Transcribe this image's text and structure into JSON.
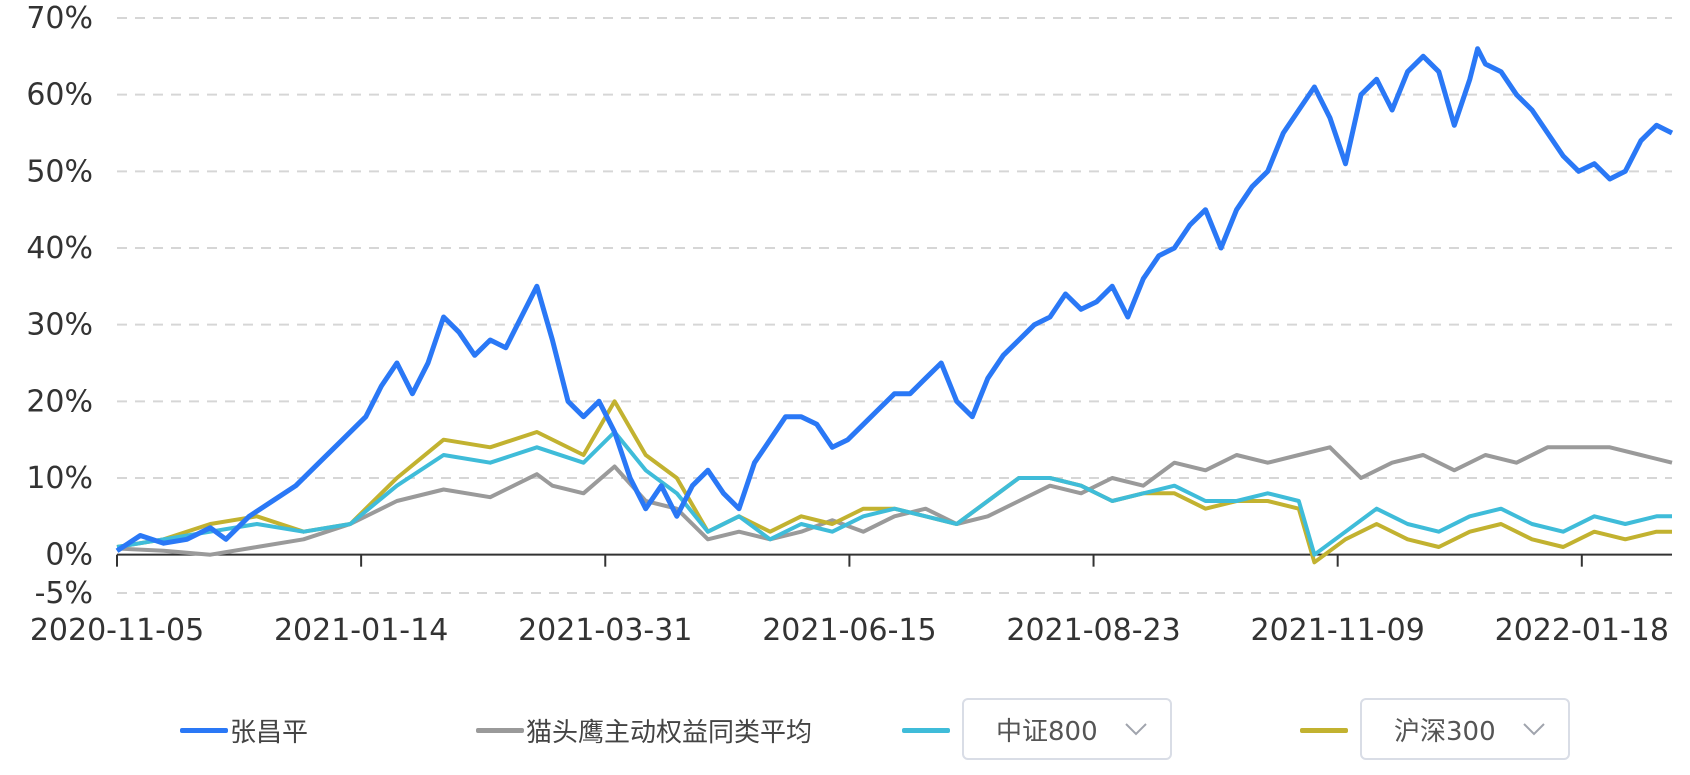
{
  "chart_data": {
    "type": "line",
    "y_ticks": [
      "70%",
      "60%",
      "50%",
      "40%",
      "30%",
      "20%",
      "10%",
      "0%",
      "-5%"
    ],
    "y_tick_values": [
      70,
      60,
      50,
      40,
      30,
      20,
      10,
      0,
      -5
    ],
    "ylim": [
      -5,
      70
    ],
    "x_ticks": [
      "2020-11-05",
      "2021-01-14",
      "2021-03-31",
      "2021-06-15",
      "2021-08-23",
      "2021-11-09",
      "2022-01-18"
    ],
    "x_tick_positions": [
      0,
      0.157,
      0.314,
      0.471,
      0.628,
      0.785,
      0.942
    ],
    "grid": true,
    "legend_placement": "bottom",
    "series": [
      {
        "name": "张昌平",
        "color": "#2a78f6",
        "points": [
          [
            0,
            0.5
          ],
          [
            0.015,
            2.5
          ],
          [
            0.03,
            1.5
          ],
          [
            0.045,
            2
          ],
          [
            0.06,
            3.5
          ],
          [
            0.07,
            2
          ],
          [
            0.085,
            5
          ],
          [
            0.1,
            7
          ],
          [
            0.115,
            9
          ],
          [
            0.13,
            12
          ],
          [
            0.145,
            15
          ],
          [
            0.16,
            18
          ],
          [
            0.17,
            22
          ],
          [
            0.18,
            25
          ],
          [
            0.19,
            21
          ],
          [
            0.2,
            25
          ],
          [
            0.21,
            31
          ],
          [
            0.22,
            29
          ],
          [
            0.23,
            26
          ],
          [
            0.24,
            28
          ],
          [
            0.25,
            27
          ],
          [
            0.26,
            31
          ],
          [
            0.27,
            35
          ],
          [
            0.28,
            28
          ],
          [
            0.29,
            20
          ],
          [
            0.3,
            18
          ],
          [
            0.31,
            20
          ],
          [
            0.32,
            16
          ],
          [
            0.33,
            10
          ],
          [
            0.34,
            6
          ],
          [
            0.35,
            9
          ],
          [
            0.36,
            5
          ],
          [
            0.37,
            9
          ],
          [
            0.38,
            11
          ],
          [
            0.39,
            8
          ],
          [
            0.4,
            6
          ],
          [
            0.41,
            12
          ],
          [
            0.42,
            15
          ],
          [
            0.43,
            18
          ],
          [
            0.44,
            18
          ],
          [
            0.45,
            17
          ],
          [
            0.46,
            14
          ],
          [
            0.47,
            15
          ],
          [
            0.48,
            17
          ],
          [
            0.49,
            19
          ],
          [
            0.5,
            21
          ],
          [
            0.51,
            21
          ],
          [
            0.52,
            23
          ],
          [
            0.53,
            25
          ],
          [
            0.54,
            20
          ],
          [
            0.55,
            18
          ],
          [
            0.56,
            23
          ],
          [
            0.57,
            26
          ],
          [
            0.58,
            28
          ],
          [
            0.59,
            30
          ],
          [
            0.6,
            31
          ],
          [
            0.61,
            34
          ],
          [
            0.62,
            32
          ],
          [
            0.63,
            33
          ],
          [
            0.64,
            35
          ],
          [
            0.65,
            31
          ],
          [
            0.66,
            36
          ],
          [
            0.67,
            39
          ],
          [
            0.68,
            40
          ],
          [
            0.69,
            43
          ],
          [
            0.7,
            45
          ],
          [
            0.71,
            40
          ],
          [
            0.72,
            45
          ],
          [
            0.73,
            48
          ],
          [
            0.74,
            50
          ],
          [
            0.75,
            55
          ],
          [
            0.76,
            58
          ],
          [
            0.77,
            61
          ],
          [
            0.78,
            57
          ],
          [
            0.79,
            51
          ],
          [
            0.8,
            60
          ],
          [
            0.81,
            62
          ],
          [
            0.82,
            58
          ],
          [
            0.83,
            63
          ],
          [
            0.84,
            65
          ],
          [
            0.85,
            63
          ],
          [
            0.86,
            56
          ],
          [
            0.87,
            62
          ],
          [
            0.875,
            66
          ],
          [
            0.88,
            64
          ],
          [
            0.89,
            63
          ],
          [
            0.9,
            60
          ],
          [
            0.91,
            58
          ],
          [
            0.92,
            55
          ],
          [
            0.93,
            52
          ],
          [
            0.94,
            50
          ],
          [
            0.95,
            51
          ],
          [
            0.96,
            49
          ],
          [
            0.97,
            50
          ],
          [
            0.98,
            54
          ],
          [
            0.99,
            56
          ],
          [
            1.0,
            55
          ]
        ],
        "raw_fraction": true
      },
      {
        "name": "猫头鹰主动权益同类平均",
        "color": "#9a9a9a",
        "raw_fraction": true,
        "points": [
          [
            0,
            0.8
          ],
          [
            0.03,
            0.5
          ],
          [
            0.06,
            0
          ],
          [
            0.09,
            1
          ],
          [
            0.12,
            2
          ],
          [
            0.15,
            4
          ],
          [
            0.18,
            7
          ],
          [
            0.21,
            8.5
          ],
          [
            0.24,
            7.5
          ],
          [
            0.27,
            10.5
          ],
          [
            0.28,
            9
          ],
          [
            0.3,
            8
          ],
          [
            0.32,
            11.5
          ],
          [
            0.34,
            7
          ],
          [
            0.36,
            6
          ],
          [
            0.38,
            2
          ],
          [
            0.4,
            3
          ],
          [
            0.42,
            2
          ],
          [
            0.44,
            3
          ],
          [
            0.46,
            4.5
          ],
          [
            0.48,
            3
          ],
          [
            0.5,
            5
          ],
          [
            0.52,
            6
          ],
          [
            0.54,
            4
          ],
          [
            0.56,
            5
          ],
          [
            0.58,
            7
          ],
          [
            0.6,
            9
          ],
          [
            0.62,
            8
          ],
          [
            0.64,
            10
          ],
          [
            0.66,
            9
          ],
          [
            0.68,
            12
          ],
          [
            0.7,
            11
          ],
          [
            0.72,
            13
          ],
          [
            0.74,
            12
          ],
          [
            0.76,
            13
          ],
          [
            0.78,
            14
          ],
          [
            0.8,
            10
          ],
          [
            0.82,
            12
          ],
          [
            0.84,
            13
          ],
          [
            0.86,
            11
          ],
          [
            0.88,
            13
          ],
          [
            0.9,
            12
          ],
          [
            0.92,
            14
          ],
          [
            0.94,
            14
          ],
          [
            0.96,
            14
          ],
          [
            0.98,
            13
          ],
          [
            1.0,
            12
          ]
        ]
      },
      {
        "name": "中证800",
        "color": "#3fbcd9",
        "raw_fraction": true,
        "points": [
          [
            0,
            1
          ],
          [
            0.03,
            2
          ],
          [
            0.06,
            3
          ],
          [
            0.09,
            4
          ],
          [
            0.12,
            3
          ],
          [
            0.15,
            4
          ],
          [
            0.18,
            9
          ],
          [
            0.21,
            13
          ],
          [
            0.24,
            12
          ],
          [
            0.27,
            14
          ],
          [
            0.3,
            12
          ],
          [
            0.32,
            16
          ],
          [
            0.34,
            11
          ],
          [
            0.36,
            8
          ],
          [
            0.38,
            3
          ],
          [
            0.4,
            5
          ],
          [
            0.42,
            2
          ],
          [
            0.44,
            4
          ],
          [
            0.46,
            3
          ],
          [
            0.48,
            5
          ],
          [
            0.5,
            6
          ],
          [
            0.52,
            5
          ],
          [
            0.54,
            4
          ],
          [
            0.56,
            7
          ],
          [
            0.58,
            10
          ],
          [
            0.6,
            10
          ],
          [
            0.62,
            9
          ],
          [
            0.64,
            7
          ],
          [
            0.66,
            8
          ],
          [
            0.68,
            9
          ],
          [
            0.7,
            7
          ],
          [
            0.72,
            7
          ],
          [
            0.74,
            8
          ],
          [
            0.76,
            7
          ],
          [
            0.77,
            0
          ],
          [
            0.79,
            3
          ],
          [
            0.81,
            6
          ],
          [
            0.83,
            4
          ],
          [
            0.85,
            3
          ],
          [
            0.87,
            5
          ],
          [
            0.89,
            6
          ],
          [
            0.91,
            4
          ],
          [
            0.93,
            3
          ],
          [
            0.95,
            5
          ],
          [
            0.97,
            4
          ],
          [
            0.99,
            5
          ],
          [
            1.0,
            5
          ]
        ]
      },
      {
        "name": "沪深300",
        "color": "#c2b230",
        "raw_fraction": true,
        "points": [
          [
            0,
            1
          ],
          [
            0.03,
            2
          ],
          [
            0.06,
            4
          ],
          [
            0.09,
            5
          ],
          [
            0.12,
            3
          ],
          [
            0.15,
            4
          ],
          [
            0.18,
            10
          ],
          [
            0.21,
            15
          ],
          [
            0.24,
            14
          ],
          [
            0.27,
            16
          ],
          [
            0.3,
            13
          ],
          [
            0.32,
            20
          ],
          [
            0.34,
            13
          ],
          [
            0.36,
            10
          ],
          [
            0.38,
            3
          ],
          [
            0.4,
            5
          ],
          [
            0.42,
            3
          ],
          [
            0.44,
            5
          ],
          [
            0.46,
            4
          ],
          [
            0.48,
            6
          ],
          [
            0.5,
            6
          ],
          [
            0.52,
            5
          ],
          [
            0.54,
            4
          ],
          [
            0.56,
            7
          ],
          [
            0.58,
            10
          ],
          [
            0.6,
            10
          ],
          [
            0.62,
            9
          ],
          [
            0.64,
            7
          ],
          [
            0.66,
            8
          ],
          [
            0.68,
            8
          ],
          [
            0.7,
            6
          ],
          [
            0.72,
            7
          ],
          [
            0.74,
            7
          ],
          [
            0.76,
            6
          ],
          [
            0.77,
            -1
          ],
          [
            0.79,
            2
          ],
          [
            0.81,
            4
          ],
          [
            0.83,
            2
          ],
          [
            0.85,
            1
          ],
          [
            0.87,
            3
          ],
          [
            0.89,
            4
          ],
          [
            0.91,
            2
          ],
          [
            0.93,
            1
          ],
          [
            0.95,
            3
          ],
          [
            0.97,
            2
          ],
          [
            0.99,
            3
          ],
          [
            1.0,
            3
          ]
        ]
      }
    ]
  },
  "legend": {
    "items": [
      {
        "label": "张昌平",
        "color": "#2a78f6",
        "selectable": false
      },
      {
        "label": "猫头鹰主动权益同类平均",
        "color": "#9a9a9a",
        "selectable": false
      },
      {
        "label": "中证800",
        "color": "#3fbcd9",
        "selectable": true
      },
      {
        "label": "沪深300",
        "color": "#c2b230",
        "selectable": true
      }
    ]
  },
  "icons": {
    "dropdown": "chevron-down-icon"
  }
}
